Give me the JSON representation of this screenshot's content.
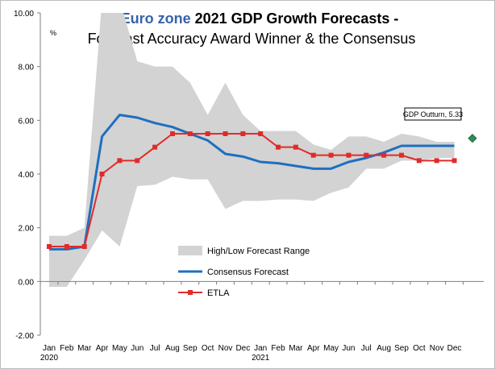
{
  "chart_data": {
    "type": "line",
    "title_highlight": "Euro zone",
    "title_rest": " 2021 GDP Growth Forecasts -",
    "subtitle": "Forecast Accuracy Award Winner & the Consensus",
    "unit_label": "%",
    "ylim": [
      -2,
      10
    ],
    "y_ticks": [
      "-2.00",
      "0.00",
      "2.00",
      "4.00",
      "6.00",
      "8.00",
      "10.00"
    ],
    "categories": [
      "Jan",
      "Feb",
      "Mar",
      "Apr",
      "May",
      "Jun",
      "Jul",
      "Aug",
      "Sep",
      "Oct",
      "Nov",
      "Dec",
      "Jan",
      "Feb",
      "Mar",
      "Apr",
      "May",
      "Jun",
      "Jul",
      "Aug",
      "Sep",
      "Oct",
      "Nov",
      "Dec"
    ],
    "year_labels": [
      {
        "index": 0,
        "label": "2020"
      },
      {
        "index": 12,
        "label": "2021"
      }
    ],
    "range": {
      "name": "High/Low Forecast Range",
      "color": "#d3d3d3",
      "high": [
        1.7,
        1.7,
        2.0,
        10.5,
        10.5,
        8.2,
        8.0,
        8.0,
        7.4,
        6.2,
        7.4,
        6.2,
        5.6,
        5.6,
        5.6,
        5.1,
        4.9,
        5.4,
        5.4,
        5.2,
        5.5,
        5.4,
        5.2,
        5.2
      ],
      "low": [
        -0.2,
        -0.2,
        0.8,
        1.9,
        1.3,
        3.55,
        3.6,
        3.9,
        3.8,
        3.8,
        2.7,
        3.0,
        3.0,
        3.05,
        3.05,
        3.0,
        3.3,
        3.5,
        4.2,
        4.2,
        4.5,
        4.5,
        4.6,
        4.6
      ]
    },
    "series": [
      {
        "name": "Consensus Forecast",
        "color": "#1f6fbf",
        "values": [
          1.2,
          1.2,
          1.3,
          5.4,
          6.2,
          6.1,
          5.9,
          5.75,
          5.5,
          5.25,
          4.75,
          4.65,
          4.45,
          4.4,
          4.3,
          4.2,
          4.2,
          4.45,
          4.6,
          4.8,
          5.05,
          5.05,
          5.05,
          5.05
        ]
      },
      {
        "name": "ETLA",
        "color": "#e02b2b",
        "values": [
          1.3,
          1.3,
          1.3,
          4.0,
          4.5,
          4.5,
          5.0,
          5.5,
          5.5,
          5.5,
          5.5,
          5.5,
          5.5,
          5.0,
          5.0,
          4.7,
          4.7,
          4.7,
          4.7,
          4.7,
          4.7,
          4.5,
          4.5,
          4.5
        ]
      }
    ],
    "outturn": {
      "label": "GDP Outturn, 5.33",
      "value": 5.33,
      "color": "#2e8b57"
    },
    "legend_position": "center-bottom",
    "grid": false
  }
}
